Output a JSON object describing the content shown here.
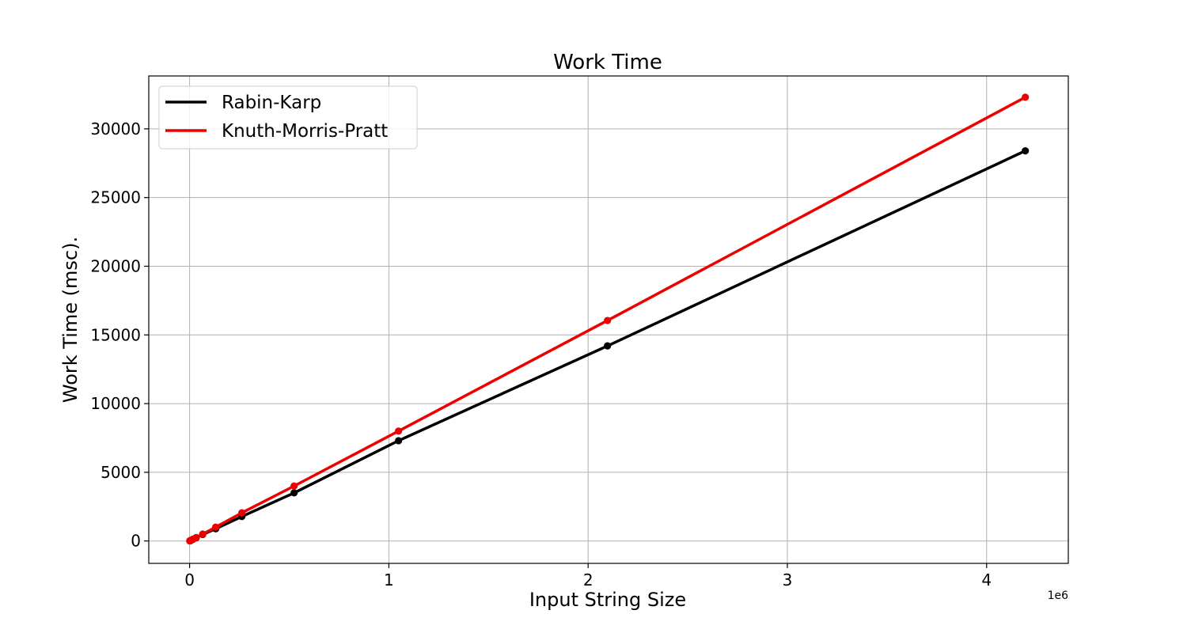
{
  "chart_data": {
    "type": "line",
    "title": "Work Time",
    "xlabel": "Input String Size",
    "ylabel": "Work Time (msc).",
    "x_offset_label": "1e6",
    "xlim": [
      -205000,
      4410000
    ],
    "ylim": [
      -1630,
      33850
    ],
    "xticks": [
      0,
      1000000,
      2000000,
      3000000,
      4000000
    ],
    "xtick_labels": [
      "0",
      "1",
      "2",
      "3",
      "4"
    ],
    "yticks": [
      0,
      5000,
      10000,
      15000,
      20000,
      25000,
      30000
    ],
    "ytick_labels": [
      "0",
      "5000",
      "10000",
      "15000",
      "20000",
      "25000",
      "30000"
    ],
    "grid": true,
    "legend_position": "upper left",
    "x": [
      1024,
      2048,
      4096,
      8192,
      16384,
      32768,
      65536,
      131072,
      262144,
      524288,
      1048576,
      2097152,
      4194304
    ],
    "series": [
      {
        "name": "Rabin-Karp",
        "color": "#000000",
        "values": [
          8,
          15,
          30,
          57,
          115,
          230,
          470,
          890,
          1780,
          3500,
          7300,
          14200,
          28400
        ]
      },
      {
        "name": "Knuth-Morris-Pratt",
        "color": "#ee0000",
        "values": [
          8,
          16,
          32,
          63,
          125,
          250,
          500,
          1010,
          2050,
          4000,
          8000,
          16050,
          32300
        ]
      }
    ]
  }
}
